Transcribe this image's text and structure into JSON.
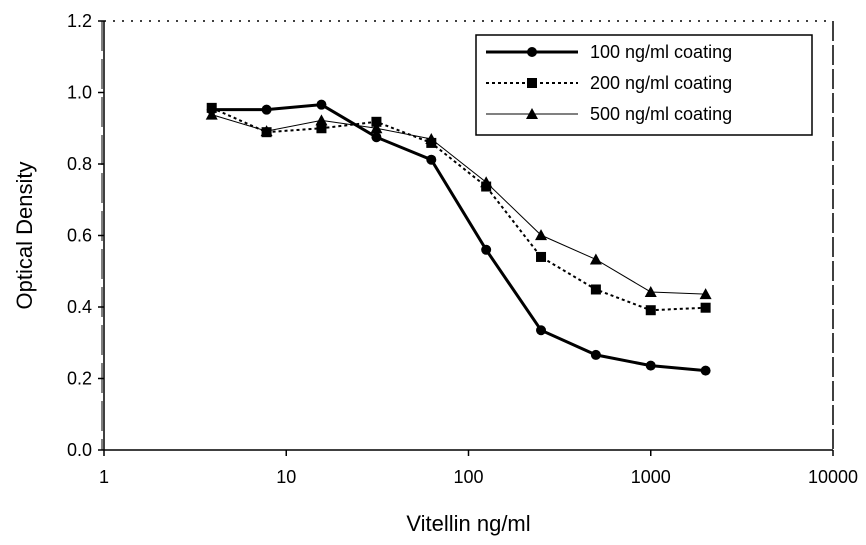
{
  "chart_data": {
    "type": "line",
    "xscale": "log",
    "xlim": [
      1,
      10000
    ],
    "ylim": [
      0,
      1.2
    ],
    "xlabel": "Vitellin ng/ml",
    "ylabel": "Optical Density",
    "x_ticks": [
      1,
      10,
      100,
      1000,
      10000
    ],
    "x_tick_labels": [
      "1",
      "10",
      "100",
      "1000",
      "10000"
    ],
    "y_ticks": [
      0,
      0.2,
      0.4,
      0.6,
      0.8,
      1.0,
      1.2
    ],
    "y_tick_labels": [
      "0.0",
      "0.2",
      "0.4",
      "0.6",
      "0.8",
      "1.0",
      "1.2"
    ],
    "grid": false,
    "legend_position": "top-right",
    "x": [
      3.9,
      7.8,
      15.6,
      31.25,
      62.5,
      125,
      250,
      500,
      1000,
      2000
    ],
    "series": [
      {
        "name": "100 ng/ml coating",
        "marker": "circle",
        "line_style": "solid-thick",
        "values": [
          0.952,
          0.952,
          0.966,
          0.875,
          0.812,
          0.56,
          0.335,
          0.266,
          0.236,
          0.222
        ]
      },
      {
        "name": "200 ng/ml coating",
        "marker": "square",
        "line_style": "dotted",
        "values": [
          0.957,
          0.889,
          0.9,
          0.918,
          0.859,
          0.737,
          0.54,
          0.449,
          0.391,
          0.398
        ]
      },
      {
        "name": "500 ng/ml coating",
        "marker": "triangle",
        "line_style": "solid-thin",
        "values": [
          0.938,
          0.892,
          0.922,
          0.9,
          0.87,
          0.749,
          0.601,
          0.533,
          0.442,
          0.436
        ]
      }
    ]
  }
}
